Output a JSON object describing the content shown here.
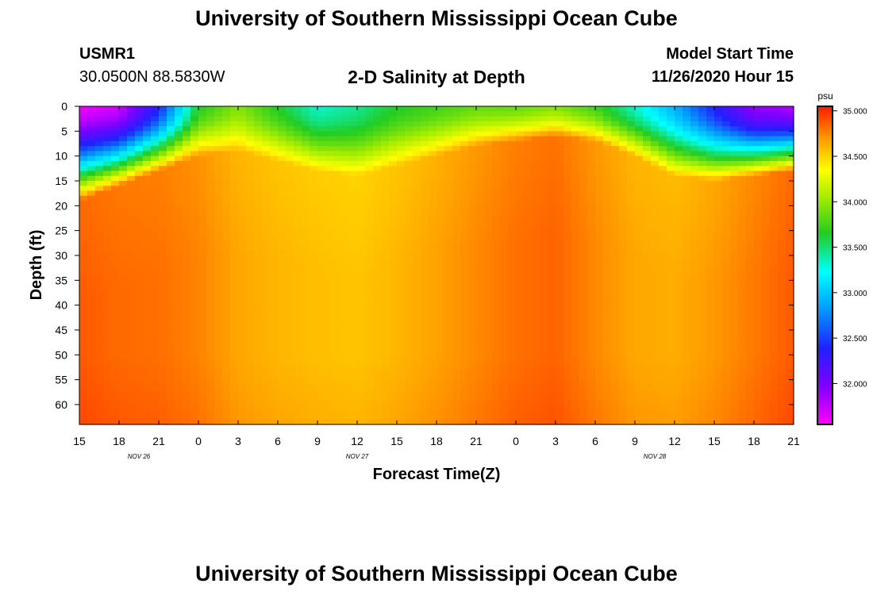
{
  "header": {
    "title": "University of Southern Mississippi Ocean Cube",
    "station_id": "USMR1",
    "coordinates": "30.0500N 88.5830W",
    "subtitle": "2-D Salinity at Depth",
    "model_start_label": "Model Start Time",
    "model_start_value": "11/26/2020 Hour 15"
  },
  "footer": {
    "title": "University of Southern Mississippi Ocean Cube"
  },
  "colors": {
    "magenta": "#ff00ff",
    "blue": "#2020ff",
    "cyan": "#00ffff",
    "green": "#22cc22",
    "yellow": "#ffff00",
    "orange": "#ff9900",
    "red": "#ff1a00"
  },
  "chart_data": {
    "type": "heatmap",
    "title": "2-D Salinity at Depth",
    "xlabel": "Forecast Time(Z)",
    "ylabel": "Depth (ft)",
    "x_tick_labels": [
      "15",
      "18",
      "21",
      "0",
      "3",
      "6",
      "9",
      "12",
      "15",
      "18",
      "21",
      "0",
      "3",
      "6",
      "9",
      "12",
      "15",
      "18",
      "21"
    ],
    "date_labels": [
      {
        "label": "NOV  26",
        "tick_index": 1.5
      },
      {
        "label": "NOV  27",
        "tick_index": 7
      },
      {
        "label": "NOV  28",
        "tick_index": 14.5
      }
    ],
    "y_ticks": [
      0,
      5,
      10,
      15,
      20,
      25,
      30,
      35,
      40,
      45,
      50,
      55,
      60
    ],
    "ylim": [
      0,
      64
    ],
    "y_inverted": true,
    "colorbar": {
      "unit": "psu",
      "range": [
        31.55,
        35.05
      ],
      "ticks": [
        "35.000",
        "34.500",
        "34.000",
        "33.500",
        "33.000",
        "32.500",
        "32.000"
      ],
      "tick_values": [
        35.0,
        34.5,
        34.0,
        33.5,
        33.0,
        32.5,
        32.0
      ]
    },
    "fresh_layer": {
      "description_times_hours": [
        0,
        3,
        6,
        9,
        12,
        15,
        18,
        21,
        24,
        27,
        30,
        33,
        36,
        39,
        42,
        45,
        48,
        51,
        54
      ],
      "surface_salinity": [
        31.6,
        31.7,
        32.4,
        33.6,
        33.9,
        33.6,
        33.3,
        33.4,
        33.6,
        33.7,
        33.8,
        33.8,
        33.9,
        33.7,
        33.3,
        32.9,
        32.4,
        31.9,
        31.8
      ],
      "halocline_depth_ft": [
        19,
        16,
        13,
        10,
        9,
        11,
        13,
        14,
        12,
        10,
        8,
        7,
        6,
        7,
        10,
        14,
        15,
        14,
        13
      ]
    },
    "deep_salinity": [
      34.85,
      34.8,
      34.78,
      34.72,
      34.6,
      34.55,
      34.52,
      34.5,
      34.55,
      34.62,
      34.7,
      34.78,
      34.82,
      34.7,
      34.6,
      34.58,
      34.65,
      34.75,
      34.85
    ]
  }
}
